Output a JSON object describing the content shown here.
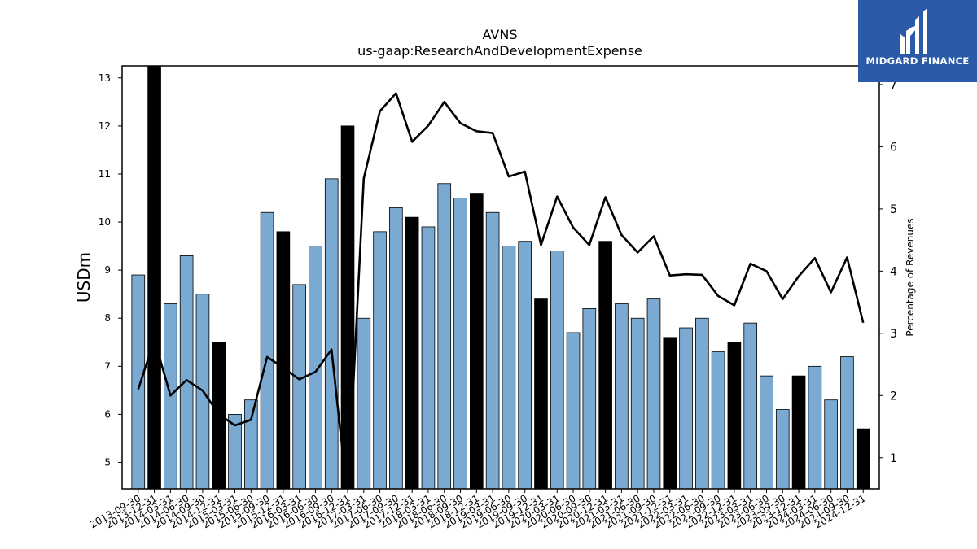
{
  "chart_data": {
    "type": "bar",
    "title": "AVNS",
    "subtitle": "us-gaap:ResearchAndDevelopmentExpense",
    "ylabel": "USDm",
    "y2label": "Percentage of Revenues",
    "ylim": [
      4.45,
      13.25
    ],
    "y2lim": [
      0.5,
      7.3
    ],
    "yticks": [
      5,
      6,
      7,
      8,
      9,
      10,
      11,
      12,
      13
    ],
    "y2ticks": [
      1,
      2,
      3,
      4,
      5,
      6,
      7
    ],
    "categories": [
      "2013-09-30",
      "2013-12-31",
      "2014-03-31",
      "2014-06-30",
      "2014-09-30",
      "2014-12-31",
      "2015-03-31",
      "2015-06-30",
      "2015-09-30",
      "2015-12-31",
      "2016-03-31",
      "2016-06-30",
      "2016-09-30",
      "2016-12-31",
      "2017-03-31",
      "2017-06-30",
      "2017-09-30",
      "2017-12-31",
      "2018-03-31",
      "2018-06-30",
      "2018-09-30",
      "2018-12-31",
      "2019-03-31",
      "2019-06-30",
      "2019-09-30",
      "2019-12-31",
      "2020-03-31",
      "2020-06-30",
      "2020-09-30",
      "2020-12-31",
      "2021-03-31",
      "2021-06-30",
      "2021-09-30",
      "2021-12-31",
      "2022-03-31",
      "2022-06-30",
      "2022-09-30",
      "2022-12-31",
      "2023-03-31",
      "2023-06-30",
      "2023-09-30",
      "2023-12-31",
      "2024-03-31",
      "2024-06-30",
      "2024-09-30",
      "2024-12-31"
    ],
    "series": [
      {
        "type": "bar",
        "axis": "left",
        "values": [
          8.9,
          13.3,
          8.3,
          9.3,
          8.5,
          7.5,
          6.0,
          6.3,
          10.2,
          9.8,
          8.7,
          9.5,
          10.9,
          12.0,
          8.0,
          9.8,
          10.3,
          10.1,
          9.9,
          10.8,
          10.5,
          10.6,
          10.2,
          9.5,
          9.6,
          8.4,
          9.4,
          7.7,
          8.2,
          9.6,
          8.3,
          8.0,
          8.4,
          7.6,
          7.8,
          8.0,
          7.3,
          7.5,
          7.9,
          6.8,
          6.1,
          6.8,
          7.0,
          6.3,
          7.2,
          5.7
        ],
        "colors": [
          "#7aaad2",
          "#000000",
          "#7aaad2",
          "#7aaad2",
          "#7aaad2",
          "#000000",
          "#7aaad2",
          "#7aaad2",
          "#7aaad2",
          "#000000",
          "#7aaad2",
          "#7aaad2",
          "#7aaad2",
          "#000000",
          "#7aaad2",
          "#7aaad2",
          "#7aaad2",
          "#000000",
          "#7aaad2",
          "#7aaad2",
          "#7aaad2",
          "#000000",
          "#7aaad2",
          "#7aaad2",
          "#7aaad2",
          "#000000",
          "#7aaad2",
          "#7aaad2",
          "#7aaad2",
          "#000000",
          "#7aaad2",
          "#7aaad2",
          "#7aaad2",
          "#000000",
          "#7aaad2",
          "#7aaad2",
          "#7aaad2",
          "#000000",
          "#7aaad2",
          "#7aaad2",
          "#7aaad2",
          "#000000",
          "#7aaad2",
          "#7aaad2",
          "#7aaad2",
          "#000000"
        ]
      },
      {
        "type": "line",
        "axis": "right",
        "color": "#000000",
        "values": [
          2.1,
          2.9,
          2.0,
          2.25,
          2.08,
          1.7,
          1.52,
          1.61,
          2.62,
          2.45,
          2.26,
          2.38,
          2.74,
          0.35,
          5.49,
          6.57,
          6.86,
          6.08,
          6.34,
          6.72,
          6.38,
          6.25,
          6.22,
          5.52,
          5.6,
          4.42,
          5.2,
          4.7,
          4.42,
          5.19,
          4.58,
          4.3,
          4.56,
          3.93,
          3.95,
          3.94,
          3.6,
          3.45,
          4.12,
          4.0,
          3.55,
          3.92,
          4.21,
          3.66,
          4.22,
          3.17
        ]
      }
    ],
    "grid": false,
    "legend": "none"
  },
  "logo": {
    "text": "MIDGARD FINANCE",
    "colors": {
      "bg": "#2b5aa8",
      "fg": "#ffffff"
    }
  }
}
